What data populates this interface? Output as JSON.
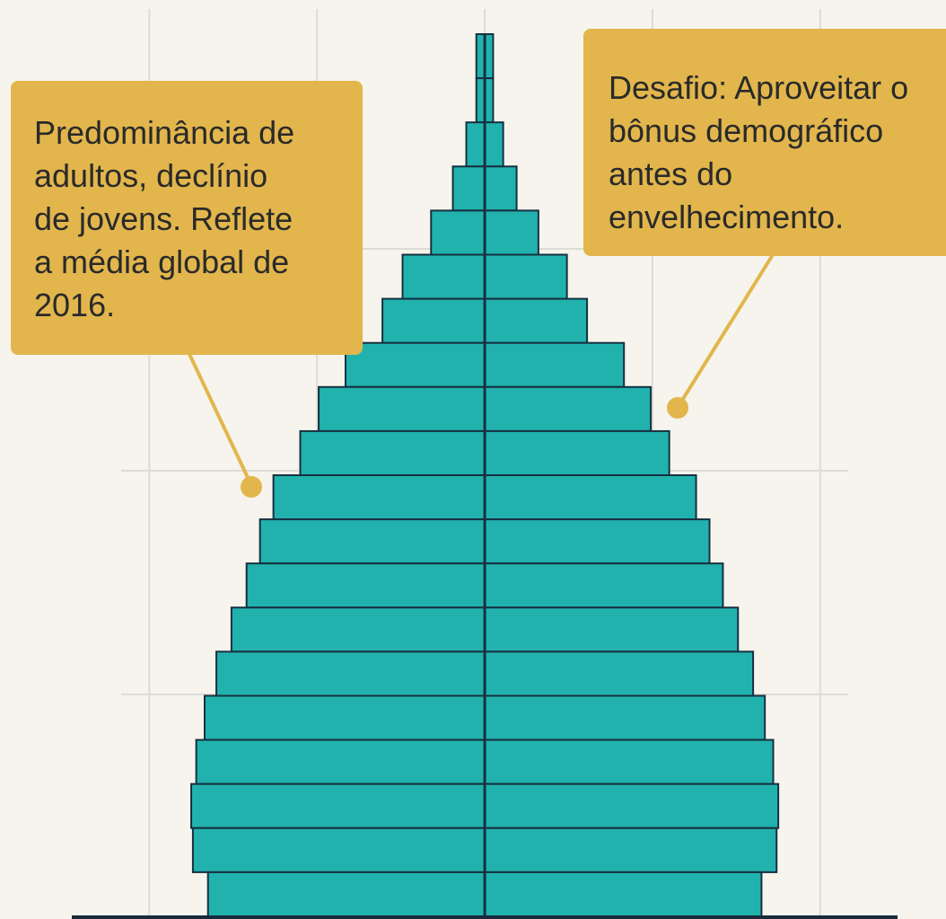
{
  "chart_data": {
    "type": "pyramid",
    "categories": [
      null,
      null,
      null,
      null,
      null,
      null,
      null,
      null,
      null,
      null,
      null,
      null,
      null,
      null,
      null,
      null,
      null,
      null,
      null,
      null
    ],
    "values": [
      0.05,
      0.05,
      0.11,
      0.19,
      0.32,
      0.49,
      0.61,
      0.83,
      0.99,
      1.1,
      1.26,
      1.34,
      1.42,
      1.51,
      1.6,
      1.67,
      1.72,
      1.75,
      1.74,
      1.65
    ],
    "color": "#22b2ae",
    "xlim": [
      -2.89,
      2.75
    ],
    "xticks": [
      -2,
      -1,
      0,
      1,
      2
    ],
    "grid": true,
    "annotations": [
      {
        "text": [
          "Predominância de",
          "adultos, declínio",
          "de jovens. Reflete",
          "a média global de",
          "2016."
        ]
      },
      {
        "text": [
          "Desafio: Aproveitar o",
          "bônus demográfico",
          "antes do",
          "envelhecimento."
        ]
      }
    ]
  }
}
